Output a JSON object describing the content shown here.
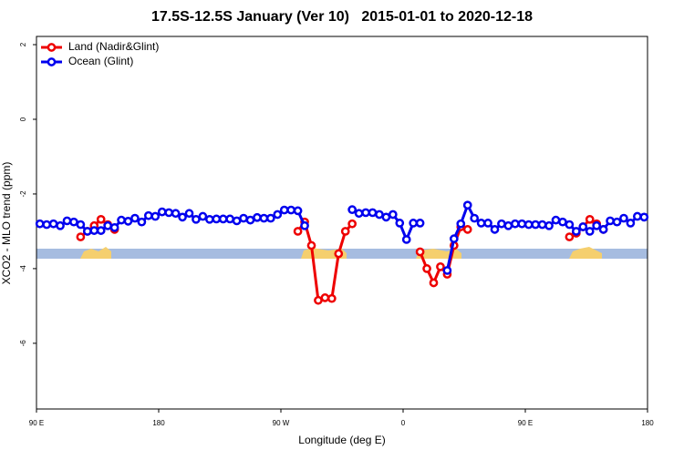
{
  "chart_data": {
    "type": "line",
    "title": "17.5S-12.5S January (Ver 10)   2015-01-01 to 2020-12-18",
    "x_label": "Longitude (deg E)",
    "y_label": "XCO2 - MLO trend (ppm)",
    "x": [
      92.5,
      97.5,
      102.5,
      107.5,
      112.5,
      117.5,
      122.5,
      127.5,
      132.5,
      137.5,
      142.5,
      147.5,
      152.5,
      157.5,
      162.5,
      167.5,
      172.5,
      177.5,
      182.5,
      187.5,
      192.5,
      197.5,
      202.5,
      207.5,
      212.5,
      217.5,
      222.5,
      227.5,
      232.5,
      237.5,
      242.5,
      247.5,
      252.5,
      257.5,
      262.5,
      267.5,
      272.5,
      277.5,
      282.5,
      287.5,
      292.5,
      297.5,
      302.5,
      307.5,
      312.5,
      317.5,
      322.5,
      327.5,
      332.5,
      337.5,
      342.5,
      347.5,
      352.5,
      357.5,
      362.5,
      367.5,
      372.5,
      377.5,
      382.5,
      387.5,
      392.5,
      397.5,
      402.5,
      407.5,
      412.5,
      417.5,
      422.5,
      427.5,
      432.5,
      437.5,
      442.5,
      447.5,
      452.5,
      457.5,
      462.5,
      467.5,
      472.5,
      477.5,
      482.5,
      487.5,
      492.5,
      497.5,
      502.5,
      507.5,
      512.5,
      517.5,
      522.5,
      527.5,
      532.5,
      537.5
    ],
    "series": [
      {
        "name": "Land (Nadir&Glint)",
        "color": "#ee0000",
        "values": [
          null,
          null,
          null,
          null,
          null,
          null,
          -3.15,
          -3.0,
          -2.85,
          -2.68,
          -2.82,
          -2.95,
          null,
          null,
          null,
          null,
          null,
          null,
          null,
          null,
          null,
          null,
          null,
          null,
          null,
          null,
          null,
          null,
          null,
          null,
          null,
          null,
          null,
          null,
          null,
          null,
          null,
          null,
          -3.0,
          -2.75,
          -3.38,
          -4.85,
          -4.78,
          -4.8,
          -3.6,
          -3.0,
          -2.8,
          null,
          null,
          null,
          null,
          null,
          null,
          null,
          null,
          null,
          -3.55,
          -4.0,
          -4.38,
          -3.95,
          -4.15,
          -3.38,
          -2.88,
          -2.95,
          null,
          null,
          null,
          null,
          null,
          null,
          null,
          null,
          null,
          null,
          null,
          null,
          null,
          null,
          -3.15,
          -3.05,
          -2.88,
          -2.68,
          -2.8,
          -2.95,
          null,
          null,
          null,
          null,
          null,
          null
        ]
      },
      {
        "name": "Ocean (Glint)",
        "color": "#0000ee",
        "values": [
          -2.8,
          -2.82,
          -2.8,
          -2.85,
          -2.72,
          -2.75,
          -2.82,
          -3.0,
          -2.98,
          -2.98,
          -2.85,
          -2.9,
          -2.7,
          -2.73,
          -2.65,
          -2.75,
          -2.58,
          -2.6,
          -2.48,
          -2.5,
          -2.52,
          -2.62,
          -2.52,
          -2.68,
          -2.6,
          -2.68,
          -2.67,
          -2.67,
          -2.67,
          -2.72,
          -2.65,
          -2.7,
          -2.63,
          -2.65,
          -2.65,
          -2.55,
          -2.43,
          -2.43,
          -2.45,
          -2.85,
          null,
          null,
          null,
          null,
          null,
          null,
          -2.42,
          -2.52,
          -2.5,
          -2.5,
          -2.55,
          -2.62,
          -2.55,
          -2.78,
          -3.22,
          -2.78,
          -2.78,
          null,
          null,
          null,
          -4.05,
          -3.2,
          -2.8,
          -2.3,
          -2.65,
          -2.78,
          -2.78,
          -2.95,
          -2.8,
          -2.85,
          -2.8,
          -2.8,
          -2.82,
          -2.82,
          -2.82,
          -2.85,
          -2.7,
          -2.75,
          -2.82,
          -3.0,
          -2.88,
          -3.0,
          -2.85,
          -2.95,
          -2.72,
          -2.75,
          -2.65,
          -2.78,
          -2.6,
          -2.62
        ]
      }
    ],
    "xlim": [
      90,
      540
    ],
    "xticks": [
      {
        "value": 90,
        "label": "90 E"
      },
      180,
      {
        "value": 270,
        "label": "90 W"
      },
      {
        "value": 360,
        "label": "0"
      },
      {
        "value": 450,
        "label": "90 E"
      },
      {
        "value": 540,
        "label": "180"
      }
    ],
    "ylim": [
      -7.76,
      2.22
    ],
    "yticks": [
      -6,
      -4,
      -2,
      0,
      2
    ],
    "legend": "top-left"
  }
}
